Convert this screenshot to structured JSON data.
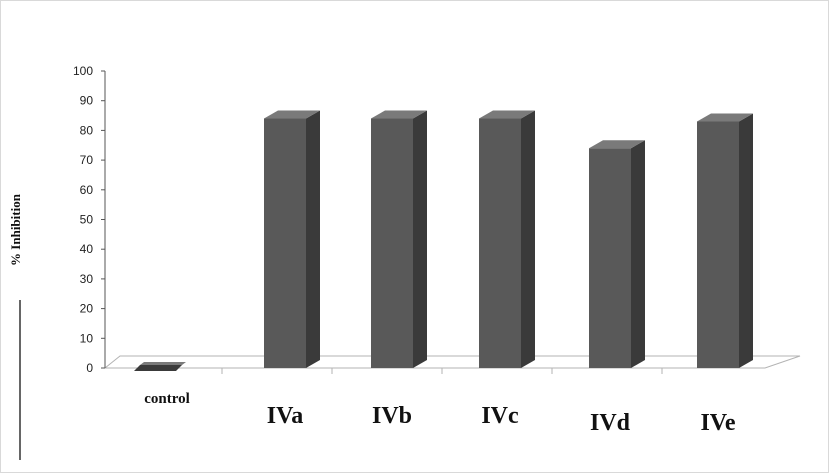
{
  "chart_data": {
    "type": "bar",
    "title": "",
    "xlabel": "",
    "ylabel": "% Inhibition",
    "ylim": [
      0,
      100
    ],
    "yticks": [
      0,
      10,
      20,
      30,
      40,
      50,
      60,
      70,
      80,
      90,
      100
    ],
    "categories": [
      "control",
      "IVa",
      "IVb",
      "IVc",
      "IVd",
      "IVe"
    ],
    "values": [
      0,
      84,
      84,
      84,
      74,
      83
    ],
    "grid": false,
    "legend": "none",
    "style": "3d-column",
    "colors": {
      "bar_front": "#595959",
      "bar_side": "#3a3a3a",
      "bar_top": "#7a7a7a",
      "floor": "#ffffff",
      "axis": "#555555"
    }
  }
}
